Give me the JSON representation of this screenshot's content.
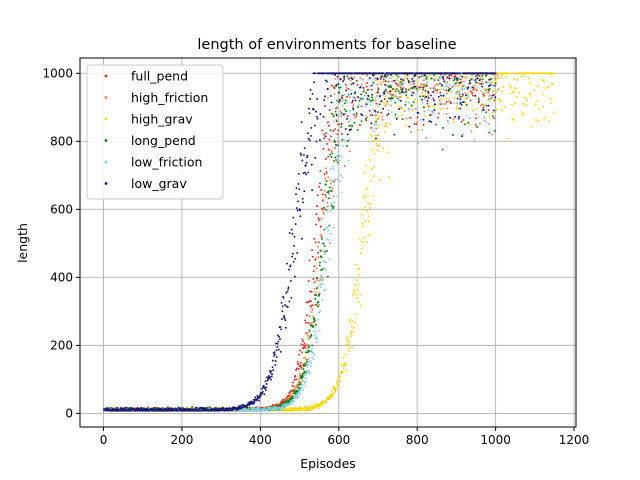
{
  "chart_data": {
    "type": "scatter",
    "title": "length of environments for baseline",
    "xlabel": "Episodes",
    "ylabel": "length",
    "xlim": [
      -60,
      1205
    ],
    "ylim": [
      -40,
      1045
    ],
    "xticks": [
      0,
      200,
      400,
      600,
      800,
      1000,
      1200
    ],
    "yticks": [
      0,
      200,
      400,
      600,
      800,
      1000
    ],
    "xtick_labels": [
      "0",
      "200",
      "400",
      "600",
      "800",
      "1000",
      "1200"
    ],
    "ytick_labels": [
      "0",
      "200",
      "400",
      "600",
      "800",
      "1000"
    ],
    "grid": true,
    "legend_position": "top-left",
    "series": [
      {
        "name": "full_pend",
        "color": "#d62728",
        "episodes": 1000,
        "midpoint": 540,
        "width": 22,
        "max": 1000
      },
      {
        "name": "high_friction",
        "color": "#ff7f50",
        "episodes": 1010,
        "midpoint": 555,
        "width": 24,
        "max": 1000
      },
      {
        "name": "high_grav",
        "color": "#ffd700",
        "episodes": 1150,
        "midpoint": 660,
        "width": 26,
        "max": 1000
      },
      {
        "name": "long_pend",
        "color": "#008000",
        "episodes": 1000,
        "midpoint": 560,
        "width": 24,
        "max": 1000
      },
      {
        "name": "low_friction",
        "color": "#87ceeb",
        "episodes": 1000,
        "midpoint": 570,
        "width": 24,
        "max": 1000
      },
      {
        "name": "low_grav",
        "color": "#191970",
        "episodes": 1000,
        "midpoint": 485,
        "width": 28,
        "max": 1000
      }
    ]
  }
}
